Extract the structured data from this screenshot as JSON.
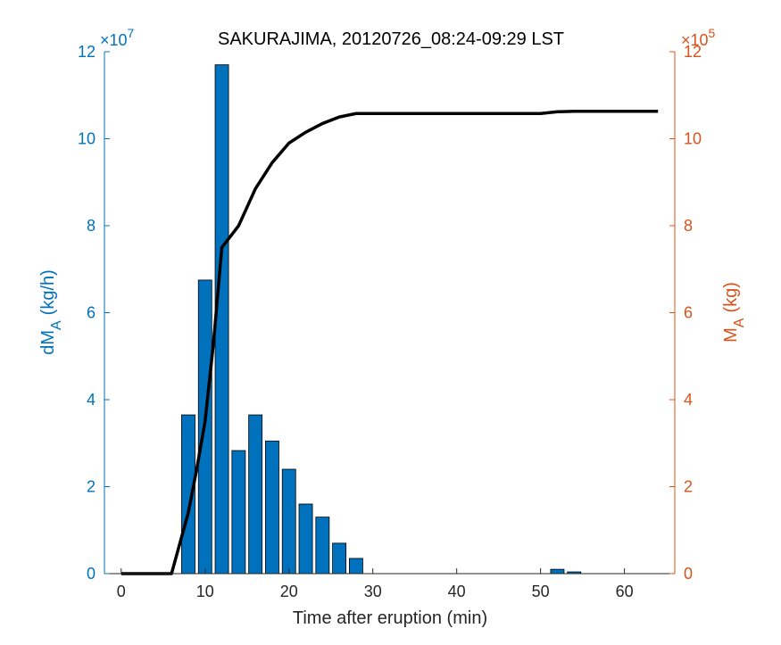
{
  "chart_data": {
    "type": "bar+line",
    "title": "SAKURAJIMA, 20120726_08:24-09:29 LST",
    "xlabel": "Time after eruption (min)",
    "xlim": [
      -2,
      66
    ],
    "xticks": [
      0,
      10,
      20,
      30,
      40,
      50,
      60
    ],
    "left_axis": {
      "label_main": "dM",
      "label_sub": "A",
      "label_unit": "(kg/h)",
      "exponent": "×10",
      "exponent_power": "7",
      "ylim": [
        0,
        12
      ],
      "ticks": [
        0,
        2,
        4,
        6,
        8,
        10,
        12
      ],
      "color": "#0072BD"
    },
    "right_axis": {
      "label_main": "M",
      "label_sub": "A",
      "label_unit": "(kg)",
      "exponent": "×10",
      "exponent_power": "5",
      "ylim": [
        0,
        12
      ],
      "ticks": [
        0,
        2,
        4,
        6,
        8,
        10,
        12
      ],
      "color": "#D95319"
    },
    "bars": {
      "name": "dMA",
      "color": "#0072BD",
      "x": [
        8,
        10,
        12,
        14,
        16,
        18,
        20,
        22,
        24,
        26,
        28,
        52,
        54
      ],
      "values": [
        3.65,
        6.75,
        11.7,
        2.83,
        3.65,
        3.05,
        2.4,
        1.6,
        1.3,
        0.7,
        0.35,
        0.1,
        0.04
      ]
    },
    "line": {
      "name": "MA",
      "color": "#000000",
      "x": [
        0,
        6,
        7,
        8,
        9,
        10,
        11,
        12,
        14,
        16,
        18,
        20,
        22,
        24,
        26,
        28,
        50,
        52,
        54,
        64
      ],
      "values": [
        0,
        0,
        0.7,
        1.4,
        2.4,
        3.5,
        5.3,
        7.5,
        8.0,
        8.85,
        9.45,
        9.9,
        10.15,
        10.35,
        10.5,
        10.58,
        10.58,
        10.62,
        10.63,
        10.63
      ]
    }
  }
}
